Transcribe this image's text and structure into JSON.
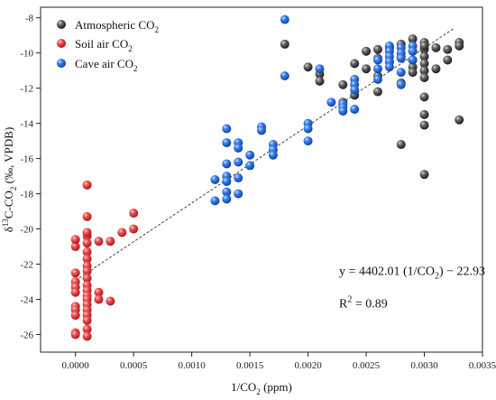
{
  "chart_data": {
    "type": "scatter",
    "xlabel": {
      "pre": "1/CO",
      "sub": "2",
      "post": " (ppm)"
    },
    "ylabel": {
      "delta": "δ",
      "sup": "13",
      "mid": "C-CO",
      "sub": "2",
      "post": " (‰, VPDB)"
    },
    "xlim": [
      -0.0003,
      0.0035
    ],
    "ylim": [
      -27,
      -7.4
    ],
    "xticks": [
      0.0,
      0.0005,
      0.001,
      0.0015,
      0.002,
      0.0025,
      0.003,
      0.0035
    ],
    "xtick_labels": [
      "0.0000",
      "0.0005",
      "0.0010",
      "0.0015",
      "0.0020",
      "0.0025",
      "0.0030",
      "0.0035"
    ],
    "yticks": [
      -26,
      -24,
      -22,
      -20,
      -18,
      -16,
      -14,
      -12,
      -10,
      -8
    ],
    "ytick_labels": [
      "-26",
      "-24",
      "-22",
      "-20",
      "-18",
      "-16",
      "-14",
      "-12",
      "-10",
      "-8"
    ],
    "legend_position": "top-left",
    "series": [
      {
        "name": "Atmospheric CO",
        "name_sub": "2",
        "color": "#3a3a3a",
        "x": [
          0.0018,
          0.002,
          0.0021,
          0.0021,
          0.0023,
          0.0023,
          0.0024,
          0.0024,
          0.0025,
          0.0025,
          0.0026,
          0.0026,
          0.0026,
          0.0026,
          0.0027,
          0.0027,
          0.0028,
          0.0028,
          0.0028,
          0.0028,
          0.0029,
          0.0029,
          0.0029,
          0.0029,
          0.0029,
          0.003,
          0.003,
          0.003,
          0.003,
          0.003,
          0.003,
          0.003,
          0.003,
          0.003,
          0.003,
          0.003,
          0.0031,
          0.0031,
          0.0032,
          0.0032,
          0.0033,
          0.0033,
          0.0033
        ],
        "y": [
          -9.5,
          -10.8,
          -11.2,
          -11.6,
          -11.8,
          -12.8,
          -10.6,
          -12.4,
          -9.9,
          -10.9,
          -9.8,
          -10.3,
          -11.3,
          -12.2,
          -9.7,
          -10.5,
          -9.5,
          -10.2,
          -11.7,
          -15.2,
          -9.2,
          -9.9,
          -10.4,
          -10.8,
          -11.1,
          -9.4,
          -9.8,
          -10.2,
          -10.6,
          -11.0,
          -11.4,
          -12.5,
          -13.5,
          -14.1,
          -16.9,
          -9.6,
          -9.7,
          -10.9,
          -9.8,
          -10.4,
          -9.4,
          -9.6,
          -13.8
        ]
      },
      {
        "name": "Soil air CO",
        "name_sub": "2",
        "color": "#e8393b",
        "x": [
          0.0,
          0.0,
          0.0,
          0.0,
          0.0,
          0.0,
          0.0,
          0.0,
          0.0,
          0.0,
          0.0,
          0.0001,
          0.0001,
          0.0001,
          0.0001,
          0.0001,
          0.0001,
          0.0001,
          0.0001,
          0.0001,
          0.0001,
          0.0001,
          0.0001,
          0.0001,
          0.0001,
          0.0001,
          0.0001,
          0.0001,
          0.0001,
          0.0001,
          0.0001,
          0.0002,
          0.0002,
          0.0002,
          0.0003,
          0.0003,
          0.0004,
          0.0005,
          0.0005
        ],
        "y": [
          -21.0,
          -22.5,
          -23.0,
          -23.3,
          -23.6,
          -24.4,
          -24.6,
          -24.9,
          -25.9,
          -26.0,
          -20.6,
          -17.5,
          -19.3,
          -20.4,
          -20.8,
          -21.3,
          -21.7,
          -22.1,
          -22.4,
          -22.8,
          -23.2,
          -23.5,
          -23.8,
          -24.0,
          -24.3,
          -24.6,
          -24.9,
          -25.2,
          -25.7,
          -26.1,
          -20.2,
          -20.7,
          -23.6,
          -24.0,
          -20.7,
          -24.1,
          -20.2,
          -19.1,
          -20.0
        ]
      },
      {
        "name": "Cave air CO",
        "name_sub": "2",
        "color": "#2b6fe0",
        "x": [
          0.0012,
          0.0012,
          0.0013,
          0.0013,
          0.0013,
          0.0013,
          0.0013,
          0.0013,
          0.0013,
          0.0014,
          0.0014,
          0.0014,
          0.0014,
          0.0014,
          0.0015,
          0.0015,
          0.0016,
          0.0016,
          0.0017,
          0.0017,
          0.0017,
          0.0018,
          0.0018,
          0.002,
          0.002,
          0.002,
          0.0021,
          0.0022,
          0.0023,
          0.0023,
          0.0023,
          0.0024,
          0.0024,
          0.0024,
          0.0024,
          0.0026,
          0.0026,
          0.0026,
          0.0027,
          0.0027,
          0.0027,
          0.0027,
          0.0027,
          0.0028,
          0.0028,
          0.0028,
          0.0028,
          0.0028,
          0.0029,
          0.0029,
          0.0029
        ],
        "y": [
          -17.2,
          -18.4,
          -14.3,
          -15.1,
          -16.3,
          -17.0,
          -17.3,
          -17.9,
          -18.3,
          -15.1,
          -15.4,
          -16.2,
          -17.1,
          -18.0,
          -15.8,
          -16.4,
          -14.2,
          -14.4,
          -15.2,
          -15.5,
          -15.8,
          -8.1,
          -11.3,
          -14.0,
          -14.3,
          -15.0,
          -10.9,
          -12.8,
          -12.9,
          -13.1,
          -13.3,
          -11.5,
          -11.8,
          -12.1,
          -13.2,
          -10.4,
          -10.9,
          -11.5,
          -9.6,
          -9.9,
          -10.2,
          -10.5,
          -10.8,
          -9.7,
          -10.0,
          -10.3,
          -11.1,
          -11.8,
          -9.6,
          -9.9,
          -10.4
        ]
      }
    ],
    "fit_line": {
      "slope": 4402.01,
      "intercept": -22.93,
      "x_range": [
        0.0,
        0.00325
      ],
      "style": "dashed"
    },
    "annotation": {
      "eq_pre": "y = 4402.01 (1/CO",
      "eq_sub": "2",
      "eq_post": ") − 22.93",
      "r2_pre": "R",
      "r2_sup": "2",
      "r2_post": " = 0.89",
      "position_x": 0.0025,
      "position_y": -22.35,
      "r2_position_y": -24.2
    }
  }
}
